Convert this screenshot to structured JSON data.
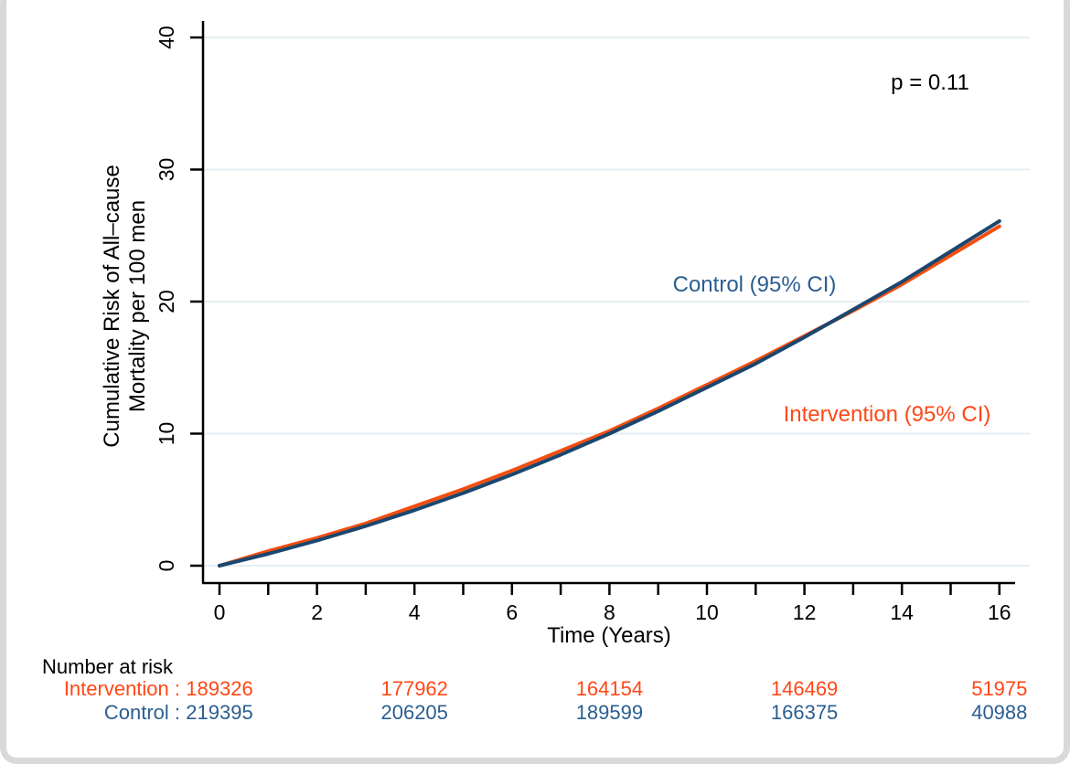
{
  "chart_data": {
    "type": "line",
    "title": "",
    "xlabel": "Time (Years)",
    "ylabel": "Cumulative Risk of All–cause Mortality per 100 men",
    "ylabel_line1": "Cumulative Risk of All–cause",
    "ylabel_line2": "Mortality per 100 men",
    "annotation": "p = 0.11",
    "xlim": [
      0,
      16
    ],
    "ylim": [
      0,
      40
    ],
    "grid": "horizontal",
    "legend_position": "inline-labels",
    "x": [
      0,
      1,
      2,
      3,
      4,
      5,
      6,
      7,
      8,
      9,
      10,
      11,
      12,
      13,
      14,
      15,
      16
    ],
    "xticks_minor": [
      0,
      1,
      2,
      3,
      4,
      5,
      6,
      7,
      8,
      9,
      10,
      11,
      12,
      13,
      14,
      15,
      16
    ],
    "xtick_labeled": [
      0,
      2,
      4,
      6,
      8,
      10,
      12,
      14,
      16
    ],
    "xtick_labels": [
      "0",
      "2",
      "4",
      "6",
      "8",
      "10",
      "12",
      "14",
      "16"
    ],
    "yticks": [
      0,
      10,
      20,
      30,
      40
    ],
    "ytick_labels": [
      "0",
      "10",
      "20",
      "30",
      "40"
    ],
    "series": [
      {
        "name": "Intervention (95% CI)",
        "values": [
          0,
          1.1,
          2.1,
          3.2,
          4.5,
          5.8,
          7.2,
          8.7,
          10.2,
          11.9,
          13.7,
          15.5,
          17.4,
          19.3,
          21.3,
          23.5,
          25.7
        ]
      },
      {
        "name": "Control (95% CI)",
        "values": [
          0,
          0.9,
          1.9,
          3.0,
          4.2,
          5.5,
          6.9,
          8.4,
          10.0,
          11.7,
          13.5,
          15.3,
          17.3,
          19.4,
          21.5,
          23.8,
          26.1
        ]
      }
    ],
    "colors": {
      "intervention_line": "#f24e0f",
      "intervention_text": "#ff4716",
      "control_line": "#1a476f",
      "control_text": "#2b5e91",
      "grid": "#e4eef2",
      "axis": "#000000"
    }
  },
  "risk_table": {
    "title": "Number at risk",
    "time_points": [
      0,
      4,
      8,
      12,
      16
    ],
    "rows": [
      {
        "label": "Intervention :",
        "group": "intervention",
        "values": [
          "189326",
          "177962",
          "164154",
          "146469",
          "51975"
        ]
      },
      {
        "label": "Control :",
        "group": "control",
        "values": [
          "219395",
          "206205",
          "189599",
          "166375",
          "40988"
        ]
      }
    ]
  }
}
